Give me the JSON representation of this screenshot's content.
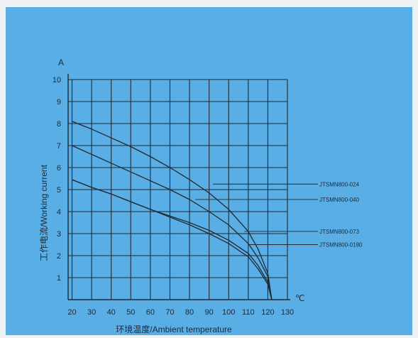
{
  "chart_data": {
    "type": "line",
    "xlabel": "环境温度/Ambient temperature",
    "ylabel": "工作电流/Working current",
    "x_unit": "℃",
    "y_unit": "A",
    "xlim": [
      18,
      130
    ],
    "ylim": [
      0,
      10
    ],
    "x_ticks": [
      20,
      30,
      40,
      50,
      60,
      70,
      80,
      90,
      100,
      110,
      120,
      130
    ],
    "y_ticks": [
      1,
      2,
      3,
      4,
      5,
      6,
      7,
      8,
      9,
      10
    ],
    "grid": true,
    "series": [
      {
        "name": "JTSMN800-024",
        "x": [
          20,
          30,
          40,
          50,
          60,
          70,
          80,
          90,
          100,
          110,
          115,
          120,
          122
        ],
        "y": [
          8.1,
          7.75,
          7.35,
          6.95,
          6.5,
          6.0,
          5.45,
          4.85,
          4.1,
          3.1,
          2.3,
          1.2,
          0
        ]
      },
      {
        "name": "JTSMN800-040",
        "x": [
          20,
          30,
          40,
          50,
          60,
          70,
          80,
          90,
          100,
          110,
          115,
          120,
          122
        ],
        "y": [
          7.0,
          6.6,
          6.2,
          5.8,
          5.4,
          5.0,
          4.55,
          4.0,
          3.4,
          2.55,
          1.9,
          1.05,
          0
        ]
      },
      {
        "name": "JTSMN800-073",
        "x": [
          20,
          30,
          40,
          50,
          60,
          70,
          80,
          90,
          100,
          110,
          115,
          120,
          122
        ],
        "y": [
          5.45,
          5.1,
          4.8,
          4.45,
          4.1,
          3.8,
          3.5,
          3.15,
          2.7,
          2.1,
          1.55,
          0.8,
          0
        ]
      },
      {
        "name": "JTSMN800-0180",
        "x": [
          20,
          30,
          40,
          50,
          60,
          70,
          80,
          90,
          100,
          110,
          115,
          120,
          122
        ],
        "y": [
          5.45,
          5.1,
          4.8,
          4.45,
          4.1,
          3.75,
          3.4,
          3.0,
          2.55,
          1.95,
          1.4,
          0.7,
          0
        ]
      }
    ],
    "legend_position": "right"
  }
}
